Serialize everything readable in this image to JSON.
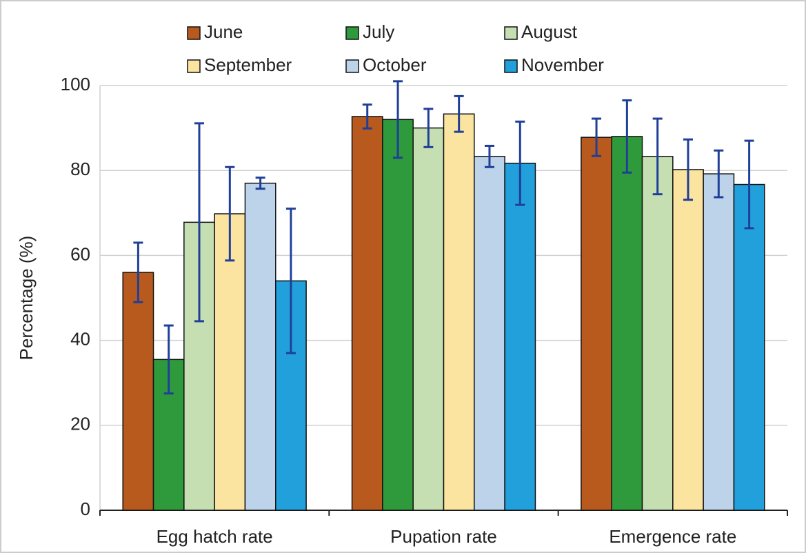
{
  "chart_data": {
    "type": "bar",
    "y_label": "Percentage (%)",
    "categories": [
      "Egg hatch rate",
      "Pupation rate",
      "Emergence rate"
    ],
    "series": [
      {
        "name": "June",
        "color": "#b85a1e",
        "values": [
          56,
          92.7,
          87.8
        ],
        "errors": [
          7,
          2.8,
          4.4
        ]
      },
      {
        "name": "July",
        "color": "#2e9a3c",
        "values": [
          35.5,
          92,
          88
        ],
        "errors": [
          8,
          9,
          8.5
        ]
      },
      {
        "name": "August",
        "color": "#c5dfb2",
        "values": [
          67.8,
          90,
          83.3
        ],
        "errors": [
          23.3,
          4.5,
          8.9
        ]
      },
      {
        "name": "September",
        "color": "#fbe3a0",
        "values": [
          69.8,
          93.3,
          80.2
        ],
        "errors": [
          11,
          4.2,
          7.1
        ]
      },
      {
        "name": "October",
        "color": "#bcd3e9",
        "values": [
          77,
          83.3,
          79.2
        ],
        "errors": [
          1.3,
          2.5,
          5.5
        ]
      },
      {
        "name": "November",
        "color": "#22a0dc",
        "values": [
          54,
          81.7,
          76.7
        ],
        "errors": [
          17,
          9.8,
          10.3
        ]
      }
    ],
    "error_color": "#1f3f99",
    "ylim": [
      0,
      100
    ],
    "yticks": [
      0,
      20,
      40,
      60,
      80,
      100
    ],
    "grid": true,
    "legend": "top"
  }
}
